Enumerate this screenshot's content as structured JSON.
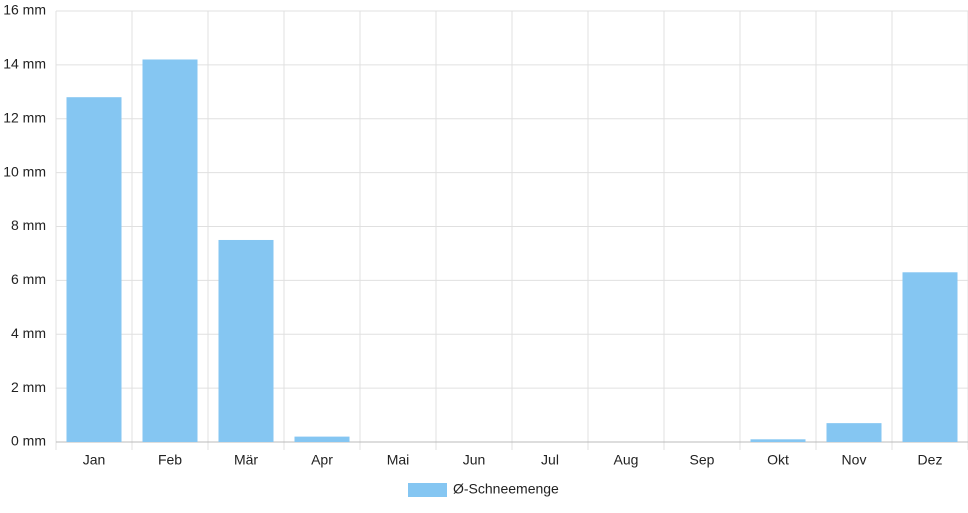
{
  "chart_data": {
    "type": "bar",
    "categories": [
      "Jan",
      "Feb",
      "Mär",
      "Apr",
      "Mai",
      "Jun",
      "Jul",
      "Aug",
      "Sep",
      "Okt",
      "Nov",
      "Dez"
    ],
    "series": [
      {
        "name": "Ø-Schneemenge",
        "color": "#85c6f2",
        "values": [
          12.8,
          14.2,
          7.5,
          0.2,
          0,
          0,
          0,
          0,
          0,
          0.1,
          0.7,
          6.3
        ]
      }
    ],
    "ylim": [
      0,
      16
    ],
    "yticks": [
      {
        "value": 0,
        "label": "0 mm"
      },
      {
        "value": 2,
        "label": "2 mm"
      },
      {
        "value": 4,
        "label": "4 mm"
      },
      {
        "value": 6,
        "label": "6 mm"
      },
      {
        "value": 8,
        "label": "8 mm"
      },
      {
        "value": 10,
        "label": "10 mm"
      },
      {
        "value": 12,
        "label": "12 mm"
      },
      {
        "value": 14,
        "label": "14 mm"
      },
      {
        "value": 16,
        "label": "16 mm"
      }
    ],
    "grid": true,
    "legend": "bottom"
  }
}
